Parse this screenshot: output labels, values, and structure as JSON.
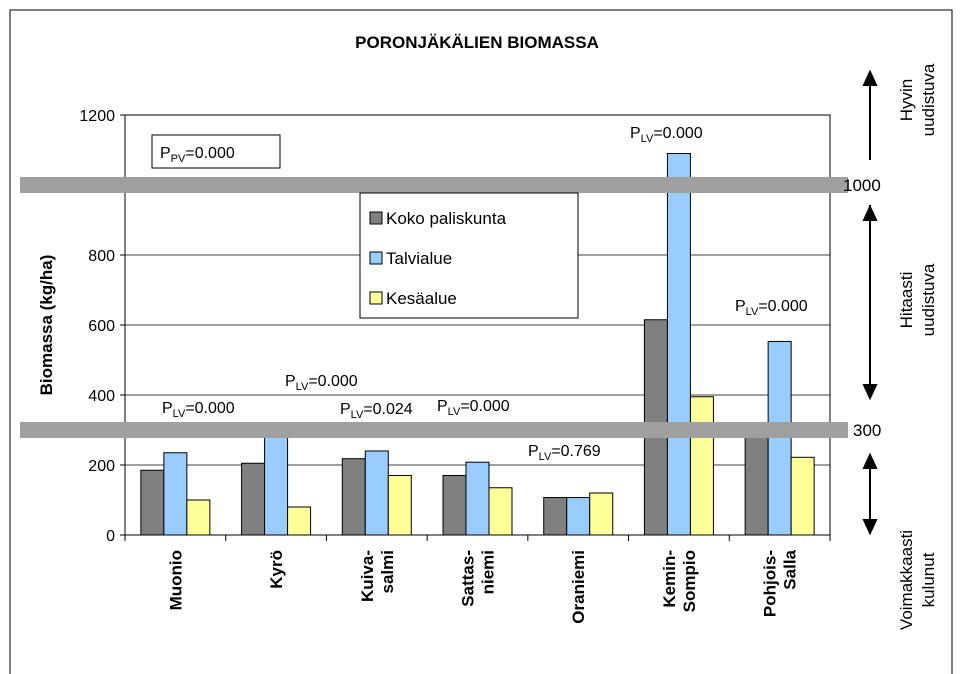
{
  "chart_data": {
    "type": "bar",
    "title": "PORONJÄKÄLIEN BIOMASSA",
    "y_label": "Biomassa (kg/ha)",
    "categories": [
      [
        "Muonio"
      ],
      [
        "Kyrö"
      ],
      [
        "Kuiva-",
        "salmi"
      ],
      [
        "Sattas-",
        "niemi"
      ],
      [
        "Oraniemi"
      ],
      [
        "Kemin-",
        "Sompio"
      ],
      [
        "Pohjois-",
        "Salla"
      ]
    ],
    "series": [
      {
        "name": "Koko paliskunta",
        "color": "#808080",
        "values": [
          185,
          205,
          218,
          170,
          107,
          615,
          300
        ]
      },
      {
        "name": "Talvialue",
        "color": "#99ccff",
        "values": [
          235,
          320,
          240,
          208,
          107,
          1090,
          553
        ]
      },
      {
        "name": "Kesäalue",
        "color": "#ffff99",
        "values": [
          100,
          80,
          170,
          135,
          120,
          395,
          222
        ]
      }
    ],
    "ylim": [
      0,
      1200
    ],
    "yticks": [
      0,
      200,
      400,
      600,
      800,
      1000,
      1200
    ],
    "grid": true,
    "reference_lines": [
      1000,
      300
    ],
    "box_annotation": {
      "p": "P",
      "sub": "PV",
      "text": "=0.000"
    },
    "annotations": [
      {
        "p": "P",
        "sub": "LV",
        "text": "=0.000"
      },
      {
        "p": "P",
        "sub": "LV",
        "text": "=0.000"
      },
      {
        "p": "P",
        "sub": "LV",
        "text": "=0.024"
      },
      {
        "p": "P",
        "sub": "LV",
        "text": "=0.000"
      },
      {
        "p": "P",
        "sub": "LV",
        "text": "=0.769"
      },
      {
        "p": "P",
        "sub": "LV",
        "text": "=0.000"
      },
      {
        "p": "P",
        "sub": "LV",
        "text": "=0.000"
      }
    ],
    "zones": [
      [
        "Hyvin",
        "uudistuva"
      ],
      [
        "Hitaasti",
        "uudistuva"
      ],
      [
        "Voimakkaasti",
        "kulunut"
      ]
    ]
  }
}
